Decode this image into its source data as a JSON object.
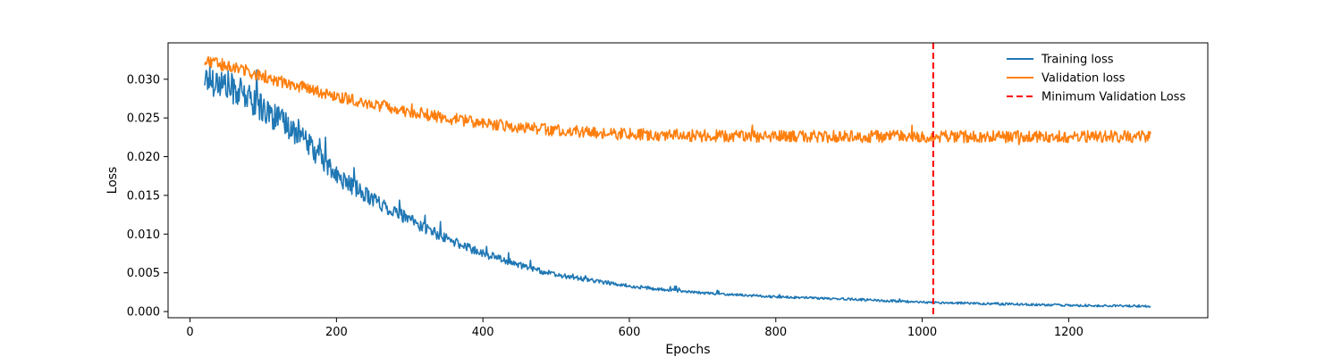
{
  "chart_data": {
    "type": "line",
    "title": "",
    "xlabel": "Epochs",
    "ylabel": "Loss",
    "xlim": [
      -30,
      1390
    ],
    "ylim": [
      -0.0008,
      0.0347
    ],
    "xticks": [
      0,
      200,
      400,
      600,
      800,
      1000,
      1200
    ],
    "xtick_labels": [
      "0",
      "200",
      "400",
      "600",
      "800",
      "1000",
      "1200"
    ],
    "yticks": [
      0.0,
      0.005,
      0.01,
      0.015,
      0.02,
      0.025,
      0.03
    ],
    "ytick_labels": [
      "0.000",
      "0.005",
      "0.010",
      "0.015",
      "0.020",
      "0.025",
      "0.030"
    ],
    "grid": false,
    "legend_position": "top-right",
    "x_start": 20,
    "x_end": 1312,
    "series": [
      {
        "name": "Training loss",
        "color": "#1f77b4",
        "style": "solid",
        "x": [
          20,
          50,
          80,
          100,
          150,
          200,
          250,
          300,
          350,
          400,
          450,
          500,
          550,
          600,
          650,
          700,
          800,
          900,
          1000,
          1100,
          1200,
          1312
        ],
        "y": [
          0.0303,
          0.0292,
          0.0276,
          0.0262,
          0.0228,
          0.0175,
          0.0145,
          0.0118,
          0.0094,
          0.0075,
          0.006,
          0.0047,
          0.004,
          0.0033,
          0.0028,
          0.0024,
          0.0019,
          0.0016,
          0.0012,
          0.001,
          0.0008,
          0.0007
        ]
      },
      {
        "name": "Validation loss",
        "color": "#ff7f0e",
        "style": "solid",
        "x": [
          20,
          50,
          80,
          100,
          150,
          200,
          250,
          300,
          350,
          400,
          450,
          500,
          550,
          600,
          700,
          800,
          900,
          1000,
          1100,
          1200,
          1312
        ],
        "y": [
          0.0322,
          0.0318,
          0.031,
          0.0303,
          0.0291,
          0.0278,
          0.0268,
          0.0258,
          0.025,
          0.0243,
          0.0238,
          0.0234,
          0.0231,
          0.0229,
          0.0227,
          0.0226,
          0.0226,
          0.0226,
          0.0226,
          0.0226,
          0.0226
        ]
      },
      {
        "name": "Minimum Validation Loss",
        "color": "#ff0000",
        "style": "dashed",
        "x_value": 1015
      }
    ]
  }
}
